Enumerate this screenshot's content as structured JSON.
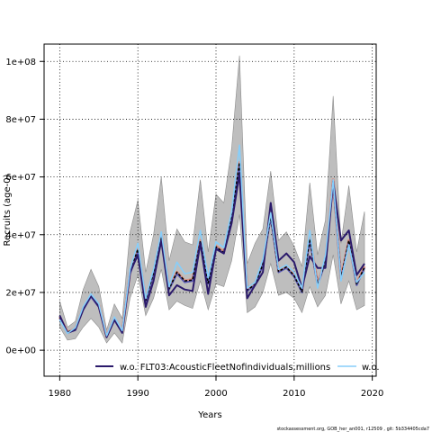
{
  "chart_data": {
    "type": "line",
    "title": "",
    "xlabel": "Years",
    "ylabel": "Recruits (age-0)",
    "xlim": [
      1978,
      2020.5
    ],
    "ylim": [
      -9000000,
      106000000
    ],
    "x_ticks": [
      1980,
      1990,
      2000,
      2010,
      2020
    ],
    "x_tick_labels": [
      "1980",
      "1990",
      "2000",
      "2010",
      "2020"
    ],
    "y_ticks": [
      0,
      20000000,
      40000000,
      60000000,
      80000000,
      100000000
    ],
    "y_tick_labels": [
      "0e+00",
      "2e+07",
      "4e+07",
      "6e+07",
      "8e+07",
      "1e+08"
    ],
    "grid": true,
    "legend_placement": "bottom",
    "x": [
      1980,
      1981,
      1982,
      1983,
      1984,
      1985,
      1986,
      1987,
      1988,
      1989,
      1990,
      1991,
      1992,
      1993,
      1994,
      1995,
      1996,
      1997,
      1998,
      1999,
      2000,
      2001,
      2002,
      2003,
      2004,
      2005,
      2006,
      2007,
      2008,
      2009,
      2010,
      2011,
      2012,
      2013,
      2014,
      2015,
      2016,
      2017,
      2018,
      2019
    ],
    "band": {
      "color": "#bebebe",
      "lower": [
        8000000,
        3500000,
        4000000,
        8000000,
        11000000,
        8000000,
        2500000,
        6000000,
        2500000,
        18000000,
        26000000,
        12000000,
        18000000,
        28000000,
        14000000,
        17000000,
        15500000,
        14500000,
        24000000,
        14000000,
        23000000,
        22000000,
        31000000,
        47000000,
        13000000,
        15000000,
        20000000,
        30000000,
        19000000,
        20000000,
        18000000,
        13000000,
        22000000,
        15000000,
        19000000,
        33000000,
        16000000,
        24000000,
        14000000,
        15500000
      ],
      "upper": [
        17000000,
        8000000,
        10000000,
        21000000,
        28000000,
        22000000,
        7000000,
        16000000,
        11000000,
        41000000,
        52000000,
        27000000,
        40000000,
        60000000,
        31000000,
        42000000,
        37500000,
        36500000,
        59000000,
        34000000,
        54000000,
        51000000,
        70000000,
        102000000,
        30000000,
        37000000,
        42000000,
        62000000,
        38000000,
        41000000,
        36000000,
        29000000,
        58000000,
        33000000,
        45000000,
        88000000,
        37000000,
        57000000,
        34000000,
        48000000
      ]
    },
    "series": [
      {
        "name": "",
        "color": "#dc8d7c",
        "dash": "",
        "width": 3,
        "values": [
          11500000,
          6200000,
          7500000,
          14500000,
          19000000,
          15500000,
          4800000,
          11000000,
          6500000,
          27000000,
          35000000,
          17500000,
          27000000,
          40000000,
          21500000,
          27000000,
          24000000,
          24500000,
          38000000,
          23500000,
          36000000,
          34000000,
          46000000,
          65000000,
          21000000,
          23000000,
          30000000,
          47000000,
          27500000,
          29000000,
          26000000,
          20500000,
          39000000,
          23000000,
          31000000,
          59000000,
          25000000,
          38000000,
          23000000,
          29000000
        ]
      },
      {
        "name": "",
        "color": "#5b5bb5",
        "dash": "",
        "width": 2,
        "values": [
          11000000,
          6000000,
          7200000,
          14000000,
          18500000,
          15000000,
          4700000,
          10500000,
          6300000,
          26500000,
          34000000,
          17000000,
          26500000,
          39500000,
          21000000,
          26500000,
          23500000,
          24000000,
          37500000,
          23000000,
          35500000,
          33500000,
          45500000,
          64000000,
          20500000,
          22500000,
          29500000,
          46000000,
          27000000,
          28500000,
          25500000,
          20000000,
          38000000,
          22500000,
          30500000,
          58000000,
          24500000,
          37500000,
          22500000,
          28500000
        ]
      },
      {
        "name": "",
        "color": "#000000",
        "dash": "3,2",
        "width": 1.6,
        "values": [
          11500000,
          6200000,
          7400000,
          14300000,
          18800000,
          15300000,
          4800000,
          10800000,
          6500000,
          27000000,
          35000000,
          17300000,
          26800000,
          40000000,
          21300000,
          27000000,
          24000000,
          24300000,
          37800000,
          23300000,
          35800000,
          33800000,
          46000000,
          65000000,
          20800000,
          22800000,
          29800000,
          46500000,
          27300000,
          28800000,
          25800000,
          20300000,
          38500000,
          22800000,
          30800000,
          58500000,
          24800000,
          38000000,
          22800000,
          28800000
        ]
      },
      {
        "name": "w.o. FLT03:AcousticFleetNofindividuals,millions",
        "color": "#2b1a6b",
        "dash": "",
        "width": 2,
        "values": [
          12000000,
          6000000,
          7000000,
          14000000,
          19000000,
          15000000,
          4500000,
          10500000,
          6000000,
          27000000,
          33000000,
          15000000,
          24000000,
          38000000,
          19000000,
          22500000,
          21000000,
          20500000,
          37000000,
          19500000,
          35000000,
          33500000,
          44000000,
          61000000,
          18000000,
          22500000,
          27000000,
          51000000,
          31000000,
          33500000,
          30500000,
          21500000,
          32500000,
          28500000,
          28500000,
          58500000,
          38000000,
          41500000,
          26000000,
          30000000
        ]
      },
      {
        "name": "w.o.",
        "color": "#87cefa",
        "dash": "",
        "width": 1.6,
        "values": [
          10500000,
          5800000,
          7800000,
          15000000,
          19500000,
          16000000,
          5000000,
          11500000,
          6800000,
          28000000,
          37000000,
          18000000,
          28000000,
          41000000,
          22000000,
          30500000,
          26500000,
          27000000,
          41500000,
          25000000,
          37500000,
          35500000,
          48000000,
          71000000,
          21500000,
          23500000,
          31500000,
          47500000,
          28000000,
          29500000,
          27000000,
          21500000,
          41500000,
          21500000,
          33000000,
          59000000,
          24000000,
          36500000,
          23500000,
          27000000
        ]
      }
    ]
  },
  "footnote": "stockassessment.org, GOB_her_an001, r12509 , git: 5b334405cda7"
}
